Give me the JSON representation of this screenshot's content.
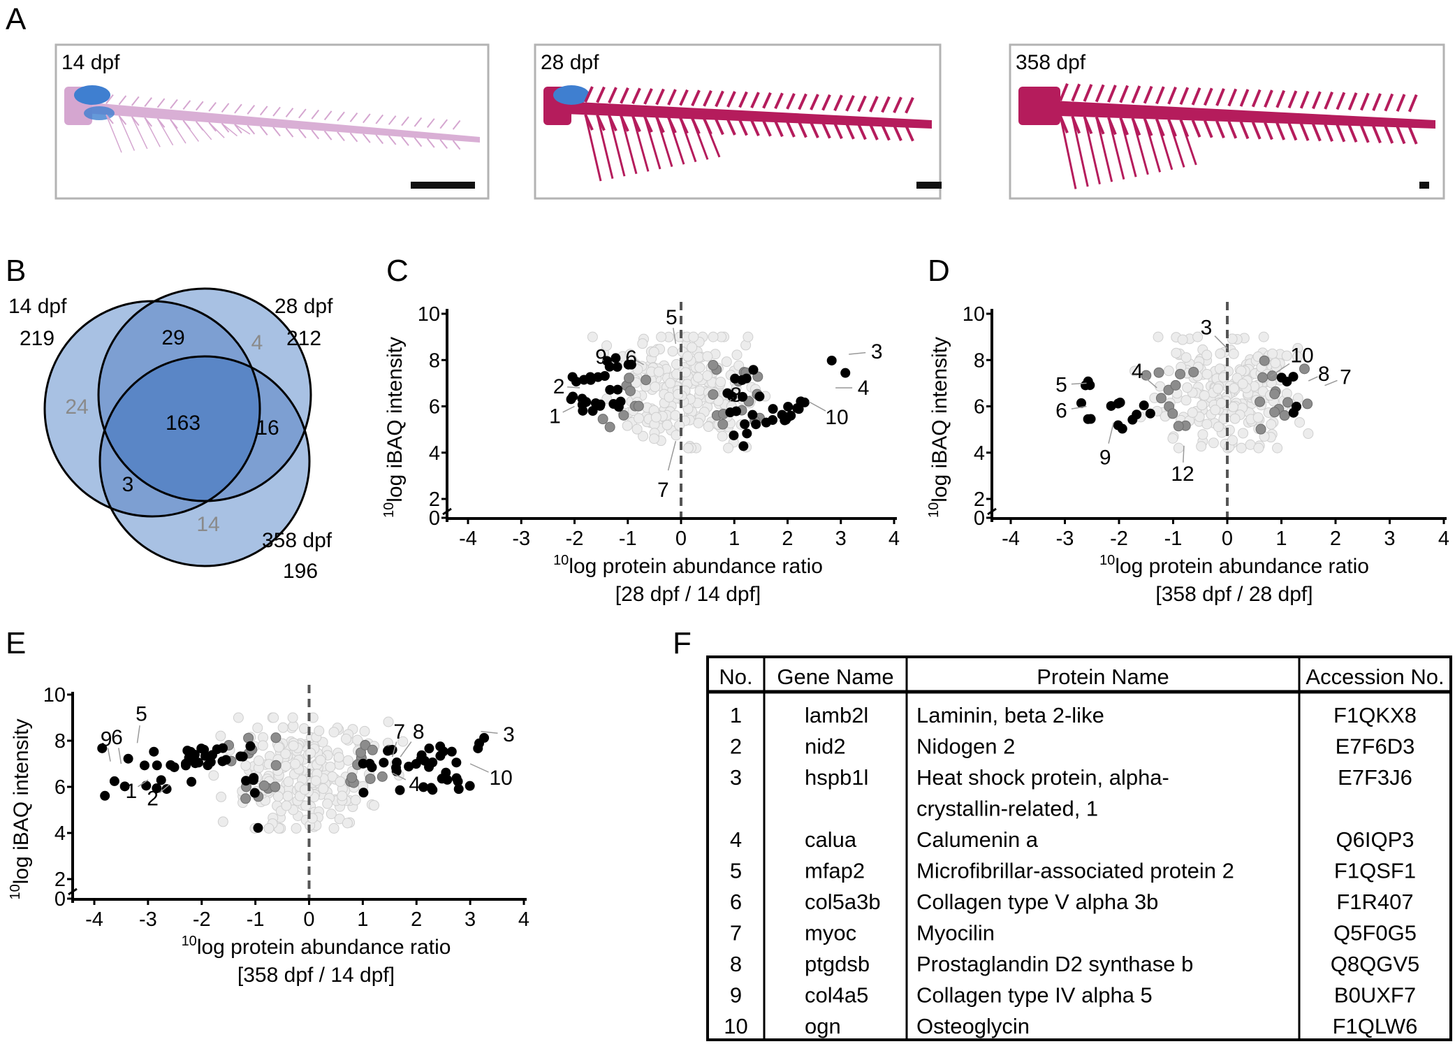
{
  "panel_labels": {
    "A": "A",
    "B": "B",
    "C": "C",
    "D": "D",
    "E": "E",
    "F": "F"
  },
  "panel_a": {
    "stages": [
      "14 dpf",
      "28 dpf",
      "358 dpf"
    ],
    "colors": {
      "cartilage": "#3f7fd0",
      "bone_14": "#d5a6d0",
      "bone": "#b51c5c"
    }
  },
  "venn": {
    "sets": [
      {
        "name": "14 dpf",
        "total": "219"
      },
      {
        "name": "28 dpf",
        "total": "212"
      },
      {
        "name": "358 dpf",
        "total": "196"
      }
    ],
    "regions": {
      "only_14": "24",
      "only_28": "4",
      "only_358": "14",
      "14_28": "29",
      "28_358": "16",
      "14_358": "3",
      "all": "163"
    },
    "colors": {
      "light": "#a8c1e3",
      "mid": "#7d9fd2",
      "dark": "#5a86c6",
      "grey_text": "#8a8a8a"
    }
  },
  "axis_labels": {
    "x_title": "log protein abundance ratio",
    "x_prefix": "10",
    "y_title": "log iBAQ intensity",
    "y_prefix": "10"
  },
  "chart_data": [
    {
      "panel": "C",
      "type": "scatter",
      "xlabel": "log protein abundance ratio",
      "xsub": "[28 dpf / 14 dpf]",
      "ylabel": "log iBAQ intensity",
      "xlim": [
        -4,
        4
      ],
      "ylim": [
        0,
        10
      ],
      "xticks": [
        "-4",
        "-3",
        "-2",
        "-1",
        "0",
        "1",
        "2",
        "3",
        "4"
      ],
      "yticks": [
        "0",
        "2",
        "4",
        "6",
        "8",
        "10"
      ],
      "annotations": [
        {
          "text": "1",
          "x": -2.0,
          "y": 6.0
        },
        {
          "text": "2",
          "x": -1.9,
          "y": 6.8
        },
        {
          "text": "3",
          "x": 3.15,
          "y": 8.25
        },
        {
          "text": "4",
          "x": 2.9,
          "y": 6.8
        },
        {
          "text": "5",
          "x": -0.1,
          "y": 8.7
        },
        {
          "text": "6",
          "x": -0.7,
          "y": 7.8
        },
        {
          "text": "7",
          "x": -0.1,
          "y": 4.5
        },
        {
          "text": "8",
          "x": 0.9,
          "y": 6.2
        },
        {
          "text": "9",
          "x": -1.45,
          "y": 7.9
        },
        {
          "text": "10",
          "x": 2.4,
          "y": 6.2
        }
      ]
    },
    {
      "panel": "D",
      "type": "scatter",
      "xlabel": "log protein abundance ratio",
      "xsub": "[358 dpf / 28 dpf]",
      "ylabel": "log iBAQ intensity",
      "xlim": [
        -4,
        4
      ],
      "ylim": [
        0,
        10
      ],
      "xticks": [
        "-4",
        "-3",
        "-2",
        "-1",
        "0",
        "1",
        "2",
        "3",
        "4"
      ],
      "yticks": [
        "0",
        "2",
        "4",
        "6",
        "8",
        "10"
      ],
      "annotations": [
        {
          "text": "3",
          "x": 0.0,
          "y": 8.5
        },
        {
          "text": "4",
          "x": -1.3,
          "y": 6.8
        },
        {
          "text": "5",
          "x": -2.6,
          "y": 7.0
        },
        {
          "text": "6",
          "x": -2.6,
          "y": 6.0
        },
        {
          "text": "7",
          "x": 1.8,
          "y": 6.9
        },
        {
          "text": "8",
          "x": 1.5,
          "y": 7.1
        },
        {
          "text": "9",
          "x": -2.1,
          "y": 5.3
        },
        {
          "text": "10",
          "x": 0.8,
          "y": 7.3
        },
        {
          "text": "12",
          "x": -0.8,
          "y": 4.3
        }
      ]
    },
    {
      "panel": "E",
      "type": "scatter",
      "xlabel": "log protein abundance ratio",
      "xsub": "[358 dpf / 14 dpf]",
      "ylabel": "log iBAQ intensity",
      "xlim": [
        -4,
        4
      ],
      "ylim": [
        0,
        10
      ],
      "xticks": [
        "-4",
        "-3",
        "-2",
        "-1",
        "0",
        "1",
        "2",
        "3",
        "4"
      ],
      "yticks": [
        "0",
        "2",
        "4",
        "6",
        "8",
        "10"
      ],
      "annotations": [
        {
          "text": "1",
          "x": -3.0,
          "y": 6.3
        },
        {
          "text": "2",
          "x": -2.6,
          "y": 6.1
        },
        {
          "text": "3",
          "x": 3.2,
          "y": 8.4
        },
        {
          "text": "4",
          "x": 1.55,
          "y": 6.6
        },
        {
          "text": "5",
          "x": -3.2,
          "y": 7.9
        },
        {
          "text": "6",
          "x": -3.5,
          "y": 7.0
        },
        {
          "text": "7",
          "x": 1.55,
          "y": 7.3
        },
        {
          "text": "8",
          "x": 1.7,
          "y": 7.3
        },
        {
          "text": "9",
          "x": -3.7,
          "y": 7.1
        },
        {
          "text": "10",
          "x": 3.0,
          "y": 7.0
        }
      ]
    }
  ],
  "table": {
    "headers": [
      "No.",
      "Gene Name",
      "Protein Name",
      "Accession No."
    ],
    "rows": [
      {
        "no": "1",
        "gene": "lamb2l",
        "protein": [
          "Laminin, beta 2-like"
        ],
        "acc": "F1QKX8"
      },
      {
        "no": "2",
        "gene": "nid2",
        "protein": [
          "Nidogen 2"
        ],
        "acc": "E7F6D3"
      },
      {
        "no": "3",
        "gene": "hspb1l",
        "protein": [
          "Heat shock protein, alpha-",
          "crystallin-related, 1"
        ],
        "acc": "E7F3J6"
      },
      {
        "no": "4",
        "gene": "calua",
        "protein": [
          "Calumenin a"
        ],
        "acc": "Q6IQP3"
      },
      {
        "no": "5",
        "gene": "mfap2",
        "protein": [
          "Microfibrillar-associated protein 2"
        ],
        "acc": "F1QSF1"
      },
      {
        "no": "6",
        "gene": "col5a3b",
        "protein": [
          "Collagen type V alpha 3b"
        ],
        "acc": "F1R407"
      },
      {
        "no": "7",
        "gene": "myoc",
        "protein": [
          "Myocilin"
        ],
        "acc": "Q5F0G5"
      },
      {
        "no": "8",
        "gene": "ptgdsb",
        "protein": [
          "Prostaglandin D2 synthase b"
        ],
        "acc": "Q8QGV5"
      },
      {
        "no": "9",
        "gene": "col4a5",
        "protein": [
          "Collagen type IV alpha 5"
        ],
        "acc": "B0UXF7"
      },
      {
        "no": "10",
        "gene": "ogn",
        "protein": [
          "Osteoglycin"
        ],
        "acc": "F1QLW6"
      }
    ]
  },
  "point_colors": {
    "black": "#000000",
    "grey": "#8c8c8c",
    "light": "#ececec",
    "light_stroke": "#cfcfcf"
  }
}
